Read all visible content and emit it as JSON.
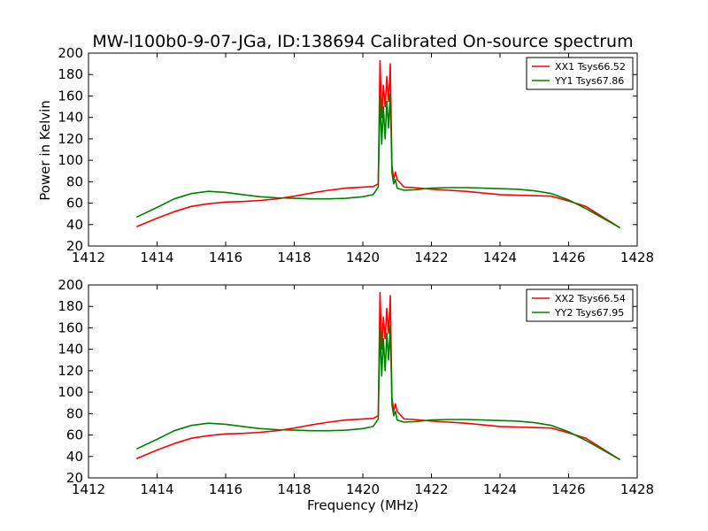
{
  "figure": {
    "title": "MW-l100b0-9-07-JGa, ID:138694 Calibrated On-source spectrum",
    "ylabel": "Power in Kelvin",
    "xlabel": "Frequency (MHz)"
  },
  "chart_data": [
    {
      "type": "line",
      "panel": "top",
      "title": "MW-l100b0-9-07-JGa, ID:138694 Calibrated On-source spectrum",
      "xlabel": "",
      "ylabel": "Power in Kelvin",
      "xlim": [
        1412,
        1428
      ],
      "ylim": [
        20,
        200
      ],
      "xticks": [
        "1412",
        "1414",
        "1416",
        "1418",
        "1420",
        "1422",
        "1424",
        "1426",
        "1428"
      ],
      "yticks": [
        "20",
        "40",
        "60",
        "80",
        "100",
        "120",
        "140",
        "160",
        "180",
        "200"
      ],
      "grid": false,
      "legend_position": "top-right",
      "series": [
        {
          "name": "XX1 Tsys66.52",
          "color": "#ff0000",
          "points": [
            [
              1413.4,
              38
            ],
            [
              1414,
              46
            ],
            [
              1414.5,
              52
            ],
            [
              1415,
              57
            ],
            [
              1415.5,
              59.5
            ],
            [
              1416,
              61
            ],
            [
              1416.5,
              61.5
            ],
            [
              1417,
              62.5
            ],
            [
              1417.5,
              64
            ],
            [
              1418,
              66.5
            ],
            [
              1418.5,
              69.5
            ],
            [
              1419,
              72
            ],
            [
              1419.5,
              74
            ],
            [
              1420,
              75
            ],
            [
              1420.3,
              75.5
            ],
            [
              1420.45,
              78
            ],
            [
              1420.5,
              193
            ],
            [
              1420.55,
              140
            ],
            [
              1420.6,
              170
            ],
            [
              1420.65,
              150
            ],
            [
              1420.7,
              178
            ],
            [
              1420.75,
              155
            ],
            [
              1420.8,
              190
            ],
            [
              1420.85,
              95
            ],
            [
              1420.9,
              82
            ],
            [
              1420.95,
              89
            ],
            [
              1421,
              82
            ],
            [
              1421.2,
              75
            ],
            [
              1421.5,
              74.5
            ],
            [
              1422,
              73
            ],
            [
              1422.5,
              72
            ],
            [
              1423,
              71
            ],
            [
              1423.5,
              69.5
            ],
            [
              1424,
              68
            ],
            [
              1424.5,
              67.5
            ],
            [
              1425,
              67
            ],
            [
              1425.5,
              66.5
            ],
            [
              1426,
              62
            ],
            [
              1426.5,
              57
            ],
            [
              1427,
              47
            ],
            [
              1427.5,
              37
            ]
          ]
        },
        {
          "name": "YY1 Tsys67.86",
          "color": "#008000",
          "points": [
            [
              1413.4,
              47
            ],
            [
              1414,
              56
            ],
            [
              1414.5,
              64
            ],
            [
              1415,
              69
            ],
            [
              1415.5,
              71
            ],
            [
              1416,
              70
            ],
            [
              1416.5,
              68
            ],
            [
              1417,
              66
            ],
            [
              1417.5,
              65
            ],
            [
              1418,
              64.5
            ],
            [
              1418.5,
              64
            ],
            [
              1419,
              64
            ],
            [
              1419.5,
              64.5
            ],
            [
              1420,
              66
            ],
            [
              1420.3,
              68
            ],
            [
              1420.45,
              75
            ],
            [
              1420.5,
              160
            ],
            [
              1420.55,
              115
            ],
            [
              1420.6,
              150
            ],
            [
              1420.65,
              120
            ],
            [
              1420.7,
              155
            ],
            [
              1420.75,
              130
            ],
            [
              1420.8,
              162
            ],
            [
              1420.85,
              88
            ],
            [
              1420.9,
              78
            ],
            [
              1420.95,
              82
            ],
            [
              1421,
              74
            ],
            [
              1421.2,
              72
            ],
            [
              1421.5,
              72.5
            ],
            [
              1422,
              74
            ],
            [
              1422.5,
              74.5
            ],
            [
              1423,
              74.5
            ],
            [
              1423.5,
              74
            ],
            [
              1424,
              73.5
            ],
            [
              1424.5,
              73
            ],
            [
              1425,
              71.5
            ],
            [
              1425.5,
              69
            ],
            [
              1426,
              63
            ],
            [
              1426.5,
              55
            ],
            [
              1427,
              46
            ],
            [
              1427.5,
              37
            ]
          ]
        }
      ]
    },
    {
      "type": "line",
      "panel": "bottom",
      "title": "",
      "xlabel": "Frequency (MHz)",
      "ylabel": "",
      "xlim": [
        1412,
        1428
      ],
      "ylim": [
        20,
        200
      ],
      "xticks": [
        "1412",
        "1414",
        "1416",
        "1418",
        "1420",
        "1422",
        "1424",
        "1426",
        "1428"
      ],
      "yticks": [
        "20",
        "40",
        "60",
        "80",
        "100",
        "120",
        "140",
        "160",
        "180",
        "200"
      ],
      "grid": false,
      "legend_position": "top-right",
      "series": [
        {
          "name": "XX2 Tsys66.54",
          "color": "#ff0000",
          "points": [
            [
              1413.4,
              38
            ],
            [
              1414,
              46
            ],
            [
              1414.5,
              52
            ],
            [
              1415,
              57
            ],
            [
              1415.5,
              59.5
            ],
            [
              1416,
              61
            ],
            [
              1416.5,
              61.5
            ],
            [
              1417,
              62.5
            ],
            [
              1417.5,
              64
            ],
            [
              1418,
              66.5
            ],
            [
              1418.5,
              69.5
            ],
            [
              1419,
              72
            ],
            [
              1419.5,
              74
            ],
            [
              1420,
              75
            ],
            [
              1420.3,
              75.5
            ],
            [
              1420.45,
              78
            ],
            [
              1420.5,
              193
            ],
            [
              1420.55,
              140
            ],
            [
              1420.6,
              170
            ],
            [
              1420.65,
              150
            ],
            [
              1420.7,
              178
            ],
            [
              1420.75,
              155
            ],
            [
              1420.8,
              190
            ],
            [
              1420.85,
              95
            ],
            [
              1420.9,
              82
            ],
            [
              1420.95,
              89
            ],
            [
              1421,
              82
            ],
            [
              1421.2,
              75
            ],
            [
              1421.5,
              74.5
            ],
            [
              1422,
              73
            ],
            [
              1422.5,
              72
            ],
            [
              1423,
              71
            ],
            [
              1423.5,
              69.5
            ],
            [
              1424,
              68
            ],
            [
              1424.5,
              67.5
            ],
            [
              1425,
              67
            ],
            [
              1425.5,
              66.5
            ],
            [
              1426,
              62
            ],
            [
              1426.5,
              57
            ],
            [
              1427,
              47
            ],
            [
              1427.5,
              37
            ]
          ]
        },
        {
          "name": "YY2 Tsys67.95",
          "color": "#008000",
          "points": [
            [
              1413.4,
              47
            ],
            [
              1414,
              56
            ],
            [
              1414.5,
              64
            ],
            [
              1415,
              69
            ],
            [
              1415.5,
              71
            ],
            [
              1416,
              70
            ],
            [
              1416.5,
              68
            ],
            [
              1417,
              66
            ],
            [
              1417.5,
              65
            ],
            [
              1418,
              64.5
            ],
            [
              1418.5,
              64
            ],
            [
              1419,
              64
            ],
            [
              1419.5,
              64.5
            ],
            [
              1420,
              66
            ],
            [
              1420.3,
              68
            ],
            [
              1420.45,
              75
            ],
            [
              1420.5,
              160
            ],
            [
              1420.55,
              115
            ],
            [
              1420.6,
              150
            ],
            [
              1420.65,
              120
            ],
            [
              1420.7,
              155
            ],
            [
              1420.75,
              130
            ],
            [
              1420.8,
              162
            ],
            [
              1420.85,
              88
            ],
            [
              1420.9,
              78
            ],
            [
              1420.95,
              82
            ],
            [
              1421,
              74
            ],
            [
              1421.2,
              72
            ],
            [
              1421.5,
              72.5
            ],
            [
              1422,
              74
            ],
            [
              1422.5,
              74.5
            ],
            [
              1423,
              74.5
            ],
            [
              1423.5,
              74
            ],
            [
              1424,
              73.5
            ],
            [
              1424.5,
              73
            ],
            [
              1425,
              71.5
            ],
            [
              1425.5,
              69
            ],
            [
              1426,
              63
            ],
            [
              1426.5,
              55
            ],
            [
              1427,
              46
            ],
            [
              1427.5,
              37
            ]
          ]
        }
      ]
    }
  ]
}
